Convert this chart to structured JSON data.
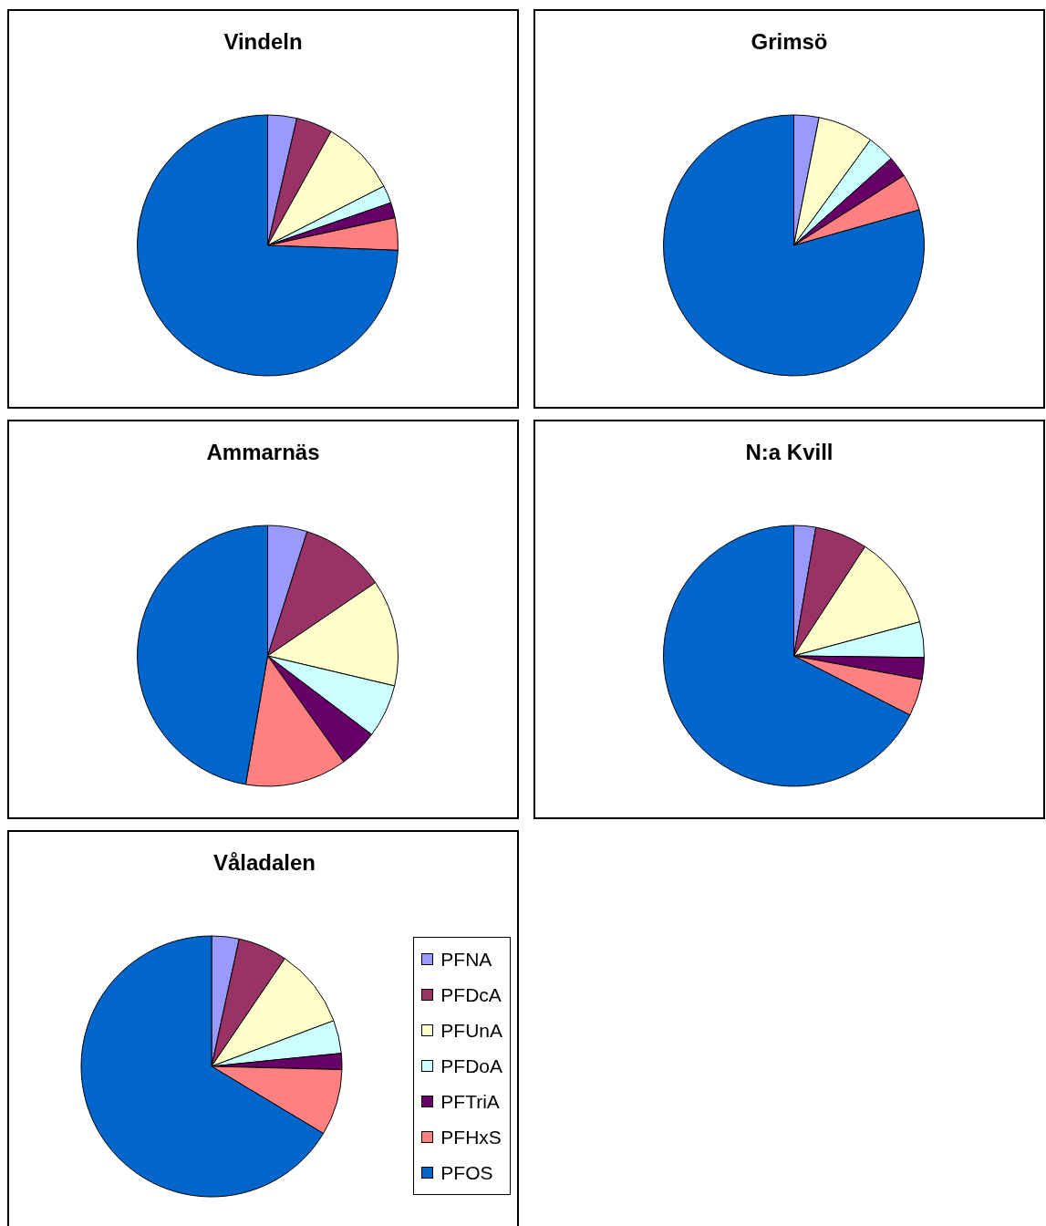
{
  "chart_data": [
    {
      "type": "pie",
      "title": "Vindeln",
      "categories": [
        null,
        null,
        null,
        null,
        null,
        null,
        null
      ],
      "values": [
        3.6,
        4.5,
        9.4,
        2.2,
        1.9,
        4.0,
        74.4
      ],
      "colors": [
        "#9999ff",
        "#993366",
        "#ffffcc",
        "#ccffff",
        "#660066",
        "#ff8080",
        "#0066cc"
      ]
    },
    {
      "type": "pie",
      "title": "Grimsö",
      "categories": [
        null,
        null,
        null,
        null,
        null,
        null,
        null
      ],
      "values": [
        3.1,
        0,
        6.9,
        3.4,
        2.6,
        4.6,
        79.4
      ],
      "colors": [
        "#9999ff",
        "#993366",
        "#ffffcc",
        "#ccffff",
        "#660066",
        "#ff8080",
        "#0066cc"
      ]
    },
    {
      "type": "pie",
      "title": "Ammarnäs",
      "categories": [
        null,
        null,
        null,
        null,
        null,
        null,
        null
      ],
      "values": [
        4.9,
        10.6,
        13.2,
        6.6,
        4.8,
        12.6,
        47.3
      ],
      "colors": [
        "#9999ff",
        "#993366",
        "#ffffcc",
        "#ccffff",
        "#660066",
        "#ff8080",
        "#0066cc"
      ]
    },
    {
      "type": "pie",
      "title": "N:a Kvill",
      "categories": [
        null,
        null,
        null,
        null,
        null,
        null,
        null
      ],
      "values": [
        2.7,
        6.5,
        11.6,
        4.4,
        2.7,
        4.6,
        67.5
      ],
      "colors": [
        "#9999ff",
        "#993366",
        "#ffffcc",
        "#ccffff",
        "#660066",
        "#ff8080",
        "#0066cc"
      ]
    },
    {
      "type": "pie",
      "title": "Våladalen",
      "categories": [
        "PFNA",
        "PFDcA",
        "PFUnA",
        "PFDoA",
        "PFTriA",
        "PFHxS",
        "PFOS"
      ],
      "values": [
        3.4,
        6.1,
        9.8,
        4.1,
        2.0,
        8.2,
        66.4
      ],
      "colors": [
        "#9999ff",
        "#993366",
        "#ffffcc",
        "#ccffff",
        "#660066",
        "#ff8080",
        "#0066cc"
      ],
      "legend": "right"
    }
  ]
}
